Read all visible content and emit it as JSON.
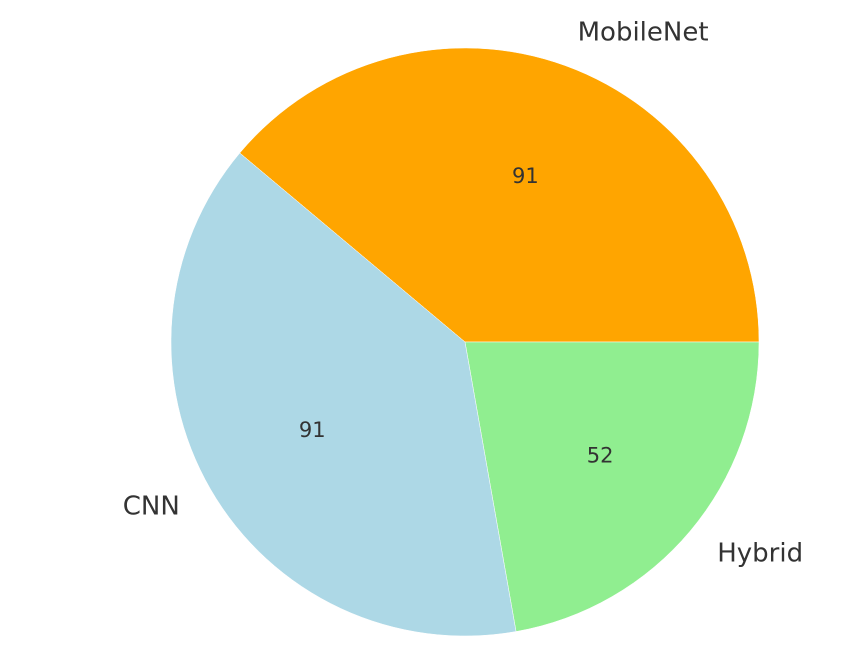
{
  "chart_data": {
    "type": "pie",
    "categories": [
      "MobileNet",
      "Hybrid",
      "CNN"
    ],
    "values": [
      91,
      52,
      91
    ],
    "colors": [
      "#FFA500",
      "#90EE90",
      "#ADD8E6"
    ],
    "start_angle_deg": 140,
    "direction": "clockwise",
    "label_mode": "value"
  }
}
